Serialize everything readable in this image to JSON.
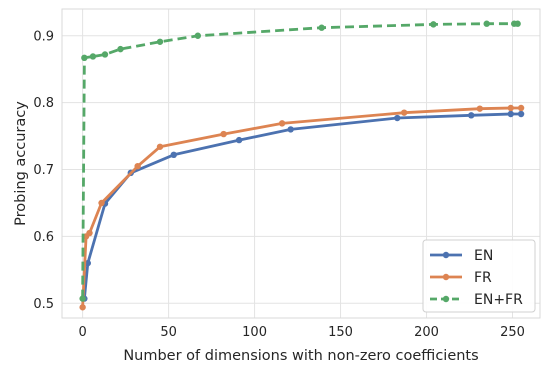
{
  "chart_data": {
    "type": "line",
    "title": "",
    "xlabel": "Number of dimensions with non-zero coefficients",
    "ylabel": "Probing accuracy",
    "xlim": [
      -12,
      266
    ],
    "ylim": [
      0.478,
      0.94
    ],
    "xticks": [
      0,
      50,
      100,
      150,
      200,
      250
    ],
    "yticks": [
      0.5,
      0.6,
      0.7,
      0.8,
      0.9
    ],
    "xtick_labels": [
      "0",
      "50",
      "100",
      "150",
      "200",
      "250"
    ],
    "ytick_labels": [
      "0.5",
      "0.6",
      "0.7",
      "0.8",
      "0.9"
    ],
    "grid": true,
    "legend_position": "bottom-right",
    "series": [
      {
        "name": "EN",
        "color": "#4c72b0",
        "style": "solid",
        "x": [
          1,
          3,
          13,
          28,
          53,
          91,
          121,
          183,
          226,
          249,
          255
        ],
        "y": [
          0.507,
          0.56,
          0.649,
          0.695,
          0.722,
          0.744,
          0.76,
          0.777,
          0.781,
          0.783,
          0.783
        ]
      },
      {
        "name": "FR",
        "color": "#dd8452",
        "style": "solid",
        "x": [
          0,
          2,
          4,
          11,
          32,
          45,
          82,
          116,
          187,
          231,
          249,
          255
        ],
        "y": [
          0.494,
          0.6,
          0.605,
          0.65,
          0.705,
          0.734,
          0.753,
          0.769,
          0.785,
          0.791,
          0.792,
          0.792
        ]
      },
      {
        "name": "EN+FR",
        "color": "#55a868",
        "style": "dashed",
        "x": [
          0,
          1,
          6,
          13,
          22,
          45,
          67,
          139,
          204,
          235,
          251,
          253
        ],
        "y": [
          0.507,
          0.867,
          0.869,
          0.872,
          0.88,
          0.891,
          0.9,
          0.912,
          0.917,
          0.918,
          0.918,
          0.918
        ]
      }
    ]
  }
}
